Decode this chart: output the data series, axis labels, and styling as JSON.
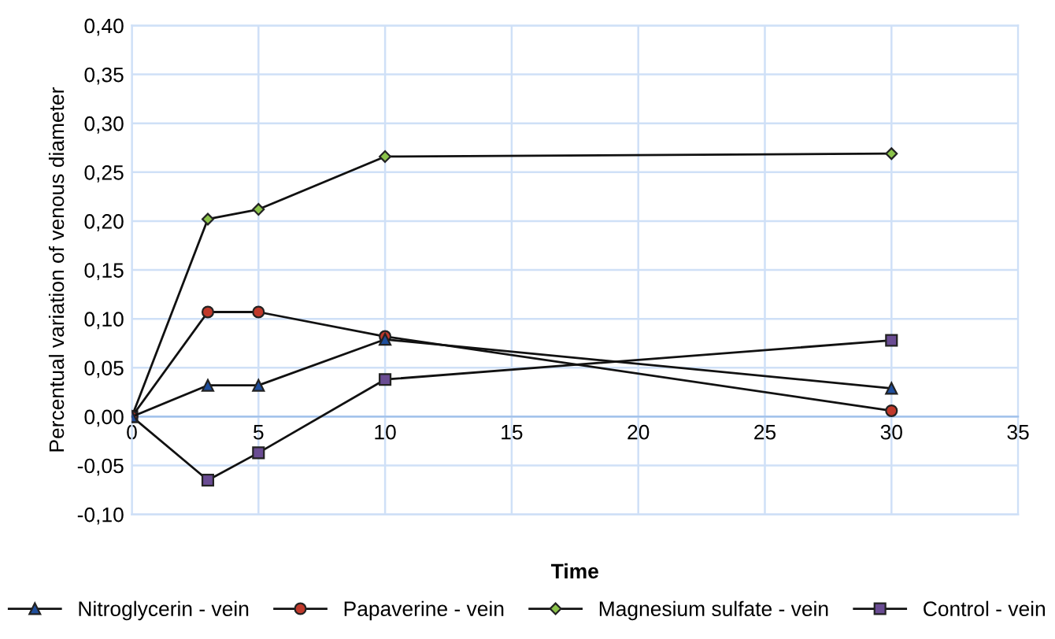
{
  "chart_data": {
    "type": "line",
    "xlabel": "Time",
    "ylabel": "Percentual variation of venous diameter",
    "x": [
      0,
      3,
      5,
      10,
      30
    ],
    "series": [
      {
        "name": "Nitroglycerin - vein",
        "color": "#1f4e9c",
        "marker": "triangle",
        "values": [
          0,
          0.032,
          0.032,
          0.079,
          0.029
        ]
      },
      {
        "name": "Papaverine - vein",
        "color": "#c0392b",
        "marker": "circle",
        "values": [
          0,
          0.107,
          0.107,
          0.082,
          0.006
        ]
      },
      {
        "name": "Magnesium sulfate - vein",
        "color": "#8bc34a",
        "marker": "diamond",
        "values": [
          0,
          0.202,
          0.212,
          0.266,
          0.269
        ]
      },
      {
        "name": "Control - vein",
        "color": "#6a4c93",
        "marker": "square",
        "values": [
          0,
          -0.065,
          -0.037,
          0.038,
          0.078
        ]
      }
    ],
    "xlim": [
      0,
      35
    ],
    "xticks": [
      0,
      5,
      10,
      15,
      20,
      25,
      30,
      35
    ],
    "ylim": [
      -0.1,
      0.4
    ],
    "yticks": [
      {
        "value": -0.1,
        "label": "-0,10"
      },
      {
        "value": -0.05,
        "label": "-0,05"
      },
      {
        "value": 0,
        "label": "0,00"
      },
      {
        "value": 0.05,
        "label": "0,05"
      },
      {
        "value": 0.1,
        "label": "0,10"
      },
      {
        "value": 0.15,
        "label": "0,15"
      },
      {
        "value": 0.2,
        "label": "0,20"
      },
      {
        "value": 0.25,
        "label": "0,25"
      },
      {
        "value": 0.3,
        "label": "0,30"
      },
      {
        "value": 0.35,
        "label": "0,35"
      },
      {
        "value": 0.4,
        "label": "0,40"
      }
    ],
    "grid": true,
    "legend": "bottom",
    "line_style": "solid"
  }
}
